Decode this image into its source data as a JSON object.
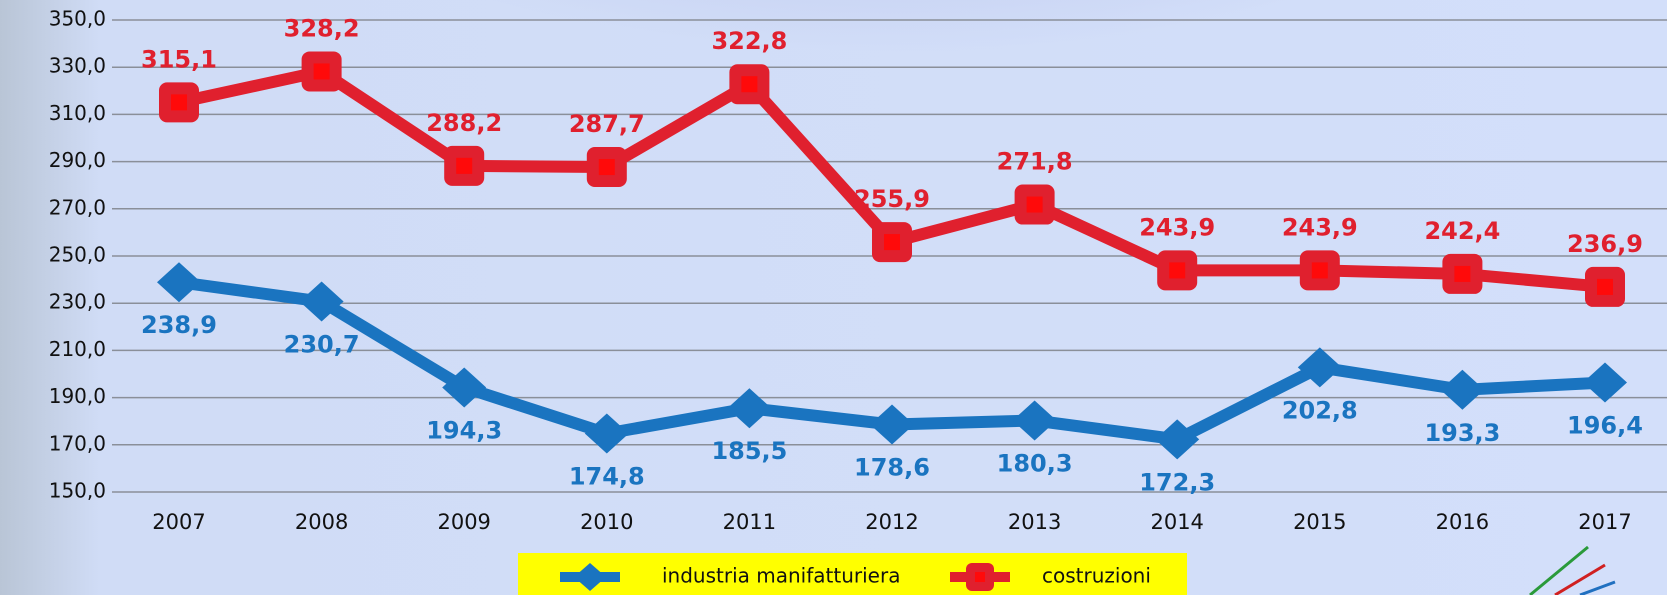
{
  "chart_data": {
    "type": "line",
    "categories": [
      "2007",
      "2008",
      "2009",
      "2010",
      "2011",
      "2012",
      "2013",
      "2014",
      "2015",
      "2016",
      "2017"
    ],
    "series": [
      {
        "name": "industria manifatturiera",
        "color": "#1a74c0",
        "values": [
          238.9,
          230.7,
          194.3,
          174.8,
          185.5,
          178.6,
          180.3,
          172.3,
          202.8,
          193.3,
          196.4
        ],
        "value_labels": [
          "238,9",
          "230,7",
          "194,3",
          "174,8",
          "185,5",
          "178,6",
          "180,3",
          "172,3",
          "202,8",
          "193,3",
          "196,4"
        ]
      },
      {
        "name": "costruzioni",
        "color": "#e0202e",
        "values": [
          315.1,
          328.2,
          288.2,
          287.7,
          322.8,
          255.9,
          271.8,
          243.9,
          243.9,
          242.4,
          236.9
        ],
        "value_labels": [
          "315,1",
          "328,2",
          "288,2",
          "287,7",
          "322,8",
          "255,9",
          "271,8",
          "243,9",
          "243,9",
          "242,4",
          "236,9"
        ]
      }
    ],
    "ylim": [
      150,
      350
    ],
    "yticks": [
      {
        "value": 150,
        "label": "150,0"
      },
      {
        "value": 170,
        "label": "170,0"
      },
      {
        "value": 190,
        "label": "190,0"
      },
      {
        "value": 210,
        "label": "210,0"
      },
      {
        "value": 230,
        "label": "230,0"
      },
      {
        "value": 250,
        "label": "250,0"
      },
      {
        "value": 270,
        "label": "270,0"
      },
      {
        "value": 290,
        "label": "290,0"
      },
      {
        "value": 310,
        "label": "310,0"
      },
      {
        "value": 330,
        "label": "330,0"
      },
      {
        "value": 350,
        "label": "350,0"
      }
    ],
    "grid": true
  }
}
